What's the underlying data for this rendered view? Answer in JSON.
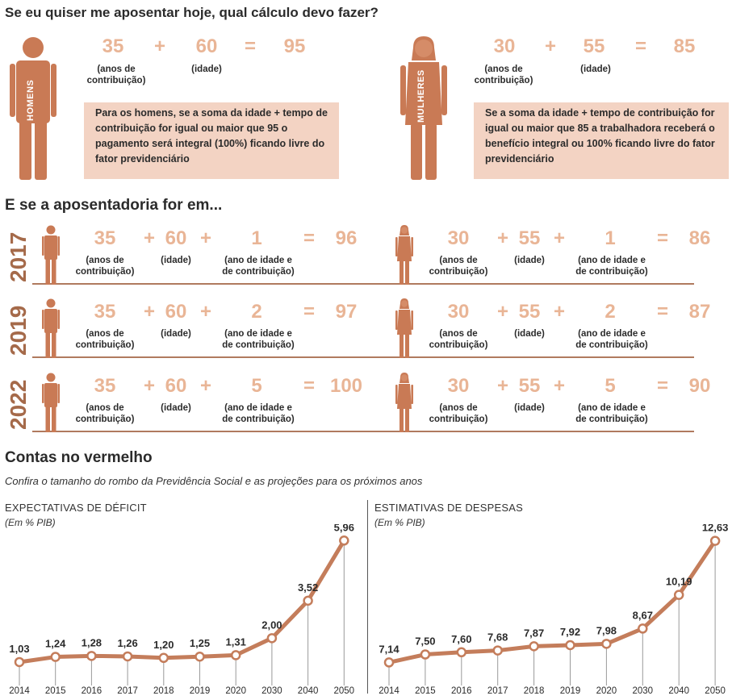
{
  "header": {
    "question": "Se eu quiser me aposentar hoje, qual cálculo devo fazer?",
    "section2_title": "E se a aposentadoria for em...",
    "section3_title": "Contas no vermelho",
    "section3_subtitle": "Confira o tamanho do rombo da Previdência Social e as projeções para os próximos anos"
  },
  "men": {
    "figure_label": "HOMENS",
    "contribution": "35",
    "age": "60",
    "total": "95",
    "contribution_label": [
      "(anos de",
      "contribuição)"
    ],
    "age_label": "(idade)",
    "description": "Para os homens, se a soma da idade + tempo de contribuição for igual ou maior que 95 o pagamento será integral (100%) ficando livre do fator previdenciário"
  },
  "women": {
    "figure_label": "MULHERES",
    "contribution": "30",
    "age": "55",
    "total": "85",
    "contribution_label": [
      "(anos de",
      "contribuição)"
    ],
    "age_label": "(idade)",
    "description": "Se a soma da idade + tempo de contribuição for igual ou maior que 85 a trabalhadora receberá o benefício integral ou 100% ficando livre do fator previdenciário"
  },
  "operators": {
    "plus": "+",
    "equals": "="
  },
  "labels": {
    "contribution": [
      "(anos de",
      "contribuição)"
    ],
    "age": "(idade)",
    "extra": [
      "(ano de idade e",
      "de contribuição)"
    ]
  },
  "projections": [
    {
      "year": "2017",
      "men": {
        "contribution": "35",
        "age": "60",
        "extra": "1",
        "total": "96"
      },
      "women": {
        "contribution": "30",
        "age": "55",
        "extra": "1",
        "total": "86"
      }
    },
    {
      "year": "2019",
      "men": {
        "contribution": "35",
        "age": "60",
        "extra": "2",
        "total": "97"
      },
      "women": {
        "contribution": "30",
        "age": "55",
        "extra": "2",
        "total": "87"
      }
    },
    {
      "year": "2022",
      "men": {
        "contribution": "35",
        "age": "60",
        "extra": "5",
        "total": "100"
      },
      "women": {
        "contribution": "30",
        "age": "55",
        "extra": "5",
        "total": "90"
      }
    }
  ],
  "colors": {
    "figure": "#c97a55",
    "big_numbers": "#e9b596",
    "box": "#f3d3c3",
    "line": "#c47d5b",
    "year": "#a56a4a"
  },
  "chart_data": [
    {
      "type": "line",
      "title": "EXPECTATIVAS DE DÉFICIT",
      "unit": "(Em % PIB)",
      "x": [
        "2014",
        "2015",
        "2016",
        "2017",
        "2018",
        "2019",
        "2020",
        "2030",
        "2040",
        "2050"
      ],
      "values": [
        1.03,
        1.24,
        1.28,
        1.26,
        1.2,
        1.25,
        1.31,
        2.0,
        3.52,
        5.96
      ],
      "value_labels": [
        "1,03",
        "1,24",
        "1,28",
        "1,26",
        "1,20",
        "1,25",
        "1,31",
        "2,00",
        "3,52",
        "5,96"
      ],
      "ylim": [
        0.8,
        6.1
      ],
      "grid": false
    },
    {
      "type": "line",
      "title": "ESTIMATIVAS DE DESPESAS",
      "unit": "(Em % PIB)",
      "x": [
        "2014",
        "2015",
        "2016",
        "2017",
        "2018",
        "2019",
        "2020",
        "2030",
        "2040",
        "2050"
      ],
      "values": [
        7.14,
        7.5,
        7.6,
        7.68,
        7.87,
        7.92,
        7.98,
        8.67,
        10.19,
        12.63
      ],
      "value_labels": [
        "7,14",
        "7,50",
        "7,60",
        "7,68",
        "7,87",
        "7,92",
        "7,98",
        "8,67",
        "10,19",
        "12,63"
      ],
      "ylim": [
        6.9,
        12.8
      ],
      "grid": false
    }
  ]
}
